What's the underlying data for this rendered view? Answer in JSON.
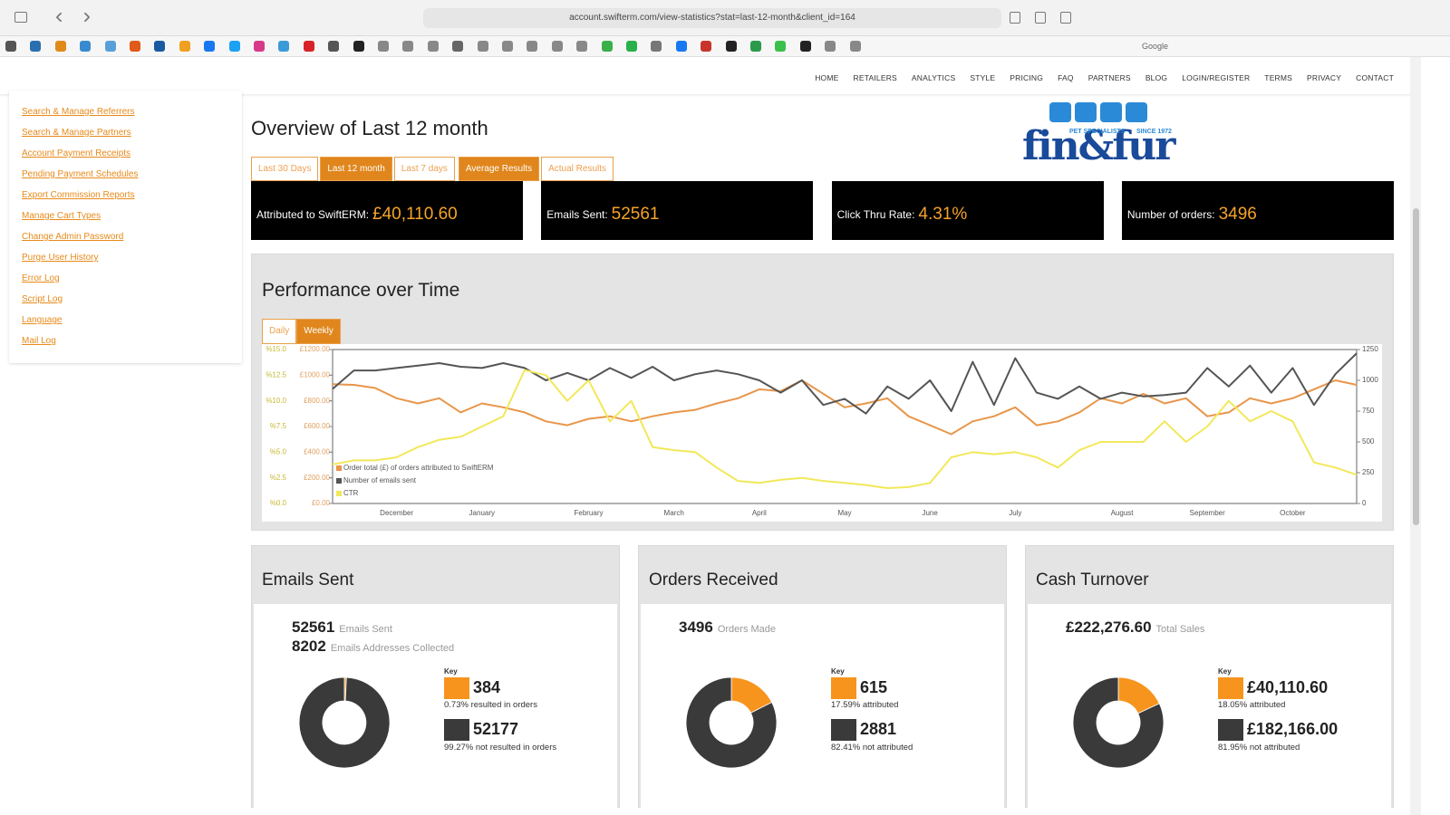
{
  "browser": {
    "url": "account.swifterm.com/view-statistics?stat=last-12-month&client_id=164",
    "bookmark": "Google"
  },
  "nav": [
    "HOME",
    "RETAILERS",
    "ANALYTICS",
    "STYLE",
    "PRICING",
    "FAQ",
    "PARTNERS",
    "BLOG",
    "LOGIN/REGISTER",
    "TERMS",
    "PRIVACY",
    "CONTACT"
  ],
  "sidebar": [
    "Search & Manage Referrers",
    "Search & Manage Partners",
    "Account Payment Receipts",
    "Pending Payment Schedules",
    "Export Commission Reports",
    "Manage Cart Types",
    "Change Admin Password",
    "Purge User History",
    "Error Log",
    "Script Log",
    "Language",
    "Mail Log"
  ],
  "logo": {
    "name": "fin&fur",
    "tagline": "PET SPECIALISTS",
    "since": "SINCE 1972"
  },
  "overview": {
    "title": "Overview of Last 12 month",
    "tabs": [
      {
        "label": "Last 30 Days",
        "active": false
      },
      {
        "label": "Last 12 month",
        "active": true
      },
      {
        "label": "Last 7 days",
        "active": false
      },
      {
        "label": "Average Results",
        "active": true
      },
      {
        "label": "Actual Results",
        "active": false
      }
    ]
  },
  "stats": [
    {
      "label": "Attributed to SwiftERM:",
      "value": "£40,110.60"
    },
    {
      "label": "Emails Sent:",
      "value": "52561"
    },
    {
      "label": "Click Thru Rate:",
      "value": "4.31%"
    },
    {
      "label": "Number of orders:",
      "value": "3496"
    }
  ],
  "performance": {
    "title": "Performance over Time",
    "toggles": [
      {
        "label": "Daily",
        "active": false
      },
      {
        "label": "Weekly",
        "active": true
      }
    ]
  },
  "chart_data": {
    "type": "line",
    "grid": false,
    "categories": [
      null,
      null,
      null,
      "December",
      null,
      null,
      null,
      "January",
      null,
      null,
      null,
      null,
      "February",
      null,
      null,
      null,
      "March",
      null,
      null,
      null,
      "April",
      null,
      null,
      null,
      "May",
      null,
      null,
      null,
      "June",
      null,
      null,
      null,
      "July",
      null,
      null,
      null,
      null,
      "August",
      null,
      null,
      null,
      "September",
      null,
      null,
      null,
      "October",
      null,
      null,
      null
    ],
    "ylim": [
      0,
      1200
    ],
    "yticks": [
      {
        "value": 0,
        "label": "£0.00"
      },
      {
        "value": 200,
        "label": "£200.00"
      },
      {
        "value": 400,
        "label": "£400.00"
      },
      {
        "value": 600,
        "label": "£600.00"
      },
      {
        "value": 800,
        "label": "£800.00"
      },
      {
        "value": 1000,
        "label": "£1000.00"
      },
      {
        "value": 1200,
        "label": "£1200.00"
      }
    ],
    "y3lim": [
      0,
      15
    ],
    "y3ticks": [
      {
        "value": 0,
        "label": "%0.0"
      },
      {
        "value": 2.5,
        "label": "%2.5"
      },
      {
        "value": 5,
        "label": "%5.0"
      },
      {
        "value": 7.5,
        "label": "%7.5"
      },
      {
        "value": 10,
        "label": "%10.0"
      },
      {
        "value": 12.5,
        "label": "%12.5"
      },
      {
        "value": 15,
        "label": "%15.0"
      }
    ],
    "y2lim": [
      0,
      1250
    ],
    "y2ticks": [
      0,
      250,
      500,
      750,
      1000,
      1250
    ],
    "series": [
      {
        "name": "Order total (£) of orders attributed to SwiftERM",
        "color": "#e8964a",
        "values": [
          930,
          925,
          900,
          820,
          780,
          820,
          710,
          780,
          750,
          710,
          640,
          610,
          660,
          680,
          640,
          680,
          710,
          730,
          780,
          820,
          890,
          875,
          960,
          855,
          750,
          780,
          820,
          680,
          610,
          540,
          640,
          680,
          750,
          610,
          640,
          710,
          820,
          780,
          855,
          780,
          820,
          680,
          710,
          820,
          780,
          820,
          890,
          960,
          925
        ]
      },
      {
        "name": "Number of emails sent",
        "color": "#555555",
        "axis": "y2",
        "values": [
          930,
          1080,
          1080,
          1100,
          1120,
          1140,
          1110,
          1100,
          1140,
          1100,
          1000,
          1060,
          1000,
          1100,
          1020,
          1110,
          1000,
          1050,
          1080,
          1050,
          1000,
          900,
          1000,
          800,
          850,
          730,
          950,
          850,
          1000,
          750,
          1150,
          800,
          1180,
          900,
          850,
          950,
          850,
          900,
          870,
          880,
          900,
          1100,
          950,
          1120,
          900,
          1100,
          800,
          1050,
          1220
        ]
      },
      {
        "name": "CTR",
        "color": "#f2e85a",
        "axis": "y3",
        "values": [
          3.8,
          4.2,
          4.2,
          4.5,
          5.5,
          6.2,
          6.5,
          7.5,
          8.5,
          13,
          12.5,
          10,
          12,
          8,
          10,
          5.5,
          5.2,
          5,
          3.5,
          2.2,
          2,
          2.3,
          2.5,
          2.2,
          2,
          1.8,
          1.5,
          1.6,
          2,
          4.5,
          5,
          4.8,
          5,
          4.5,
          3.5,
          5.2,
          6,
          6,
          6,
          8,
          6,
          7.5,
          10,
          8,
          9,
          8,
          4,
          3.5,
          2.8
        ]
      }
    ]
  },
  "panels": [
    {
      "title": "Emails Sent",
      "summary": [
        {
          "value": "52561",
          "label": "Emails Sent"
        },
        {
          "value": "8202",
          "label": "Emails Addresses Collected"
        }
      ],
      "key": "Key",
      "values": [
        384,
        52177
      ],
      "descriptions": [
        "0.73% resulted in orders",
        "99.27% not resulted in orders"
      ],
      "colors": [
        "#f7941d",
        "#3a3a3a"
      ]
    },
    {
      "title": "Orders Received",
      "summary": [
        {
          "value": "3496",
          "label": "Orders Made"
        }
      ],
      "key": "Key",
      "values": [
        615,
        2881
      ],
      "descriptions": [
        "17.59% attributed",
        "82.41% not attributed"
      ],
      "colors": [
        "#f7941d",
        "#3a3a3a"
      ]
    },
    {
      "title": "Cash Turnover",
      "summary": [
        {
          "value": "£222,276.60",
          "label": "Total Sales"
        }
      ],
      "key": "Key",
      "values": [
        40110.6,
        182166
      ],
      "value_labels": [
        "£40,110.60",
        "£182,166.00"
      ],
      "descriptions": [
        "18.05% attributed",
        "81.95% not attributed"
      ],
      "colors": [
        "#f7941d",
        "#3a3a3a"
      ]
    }
  ]
}
